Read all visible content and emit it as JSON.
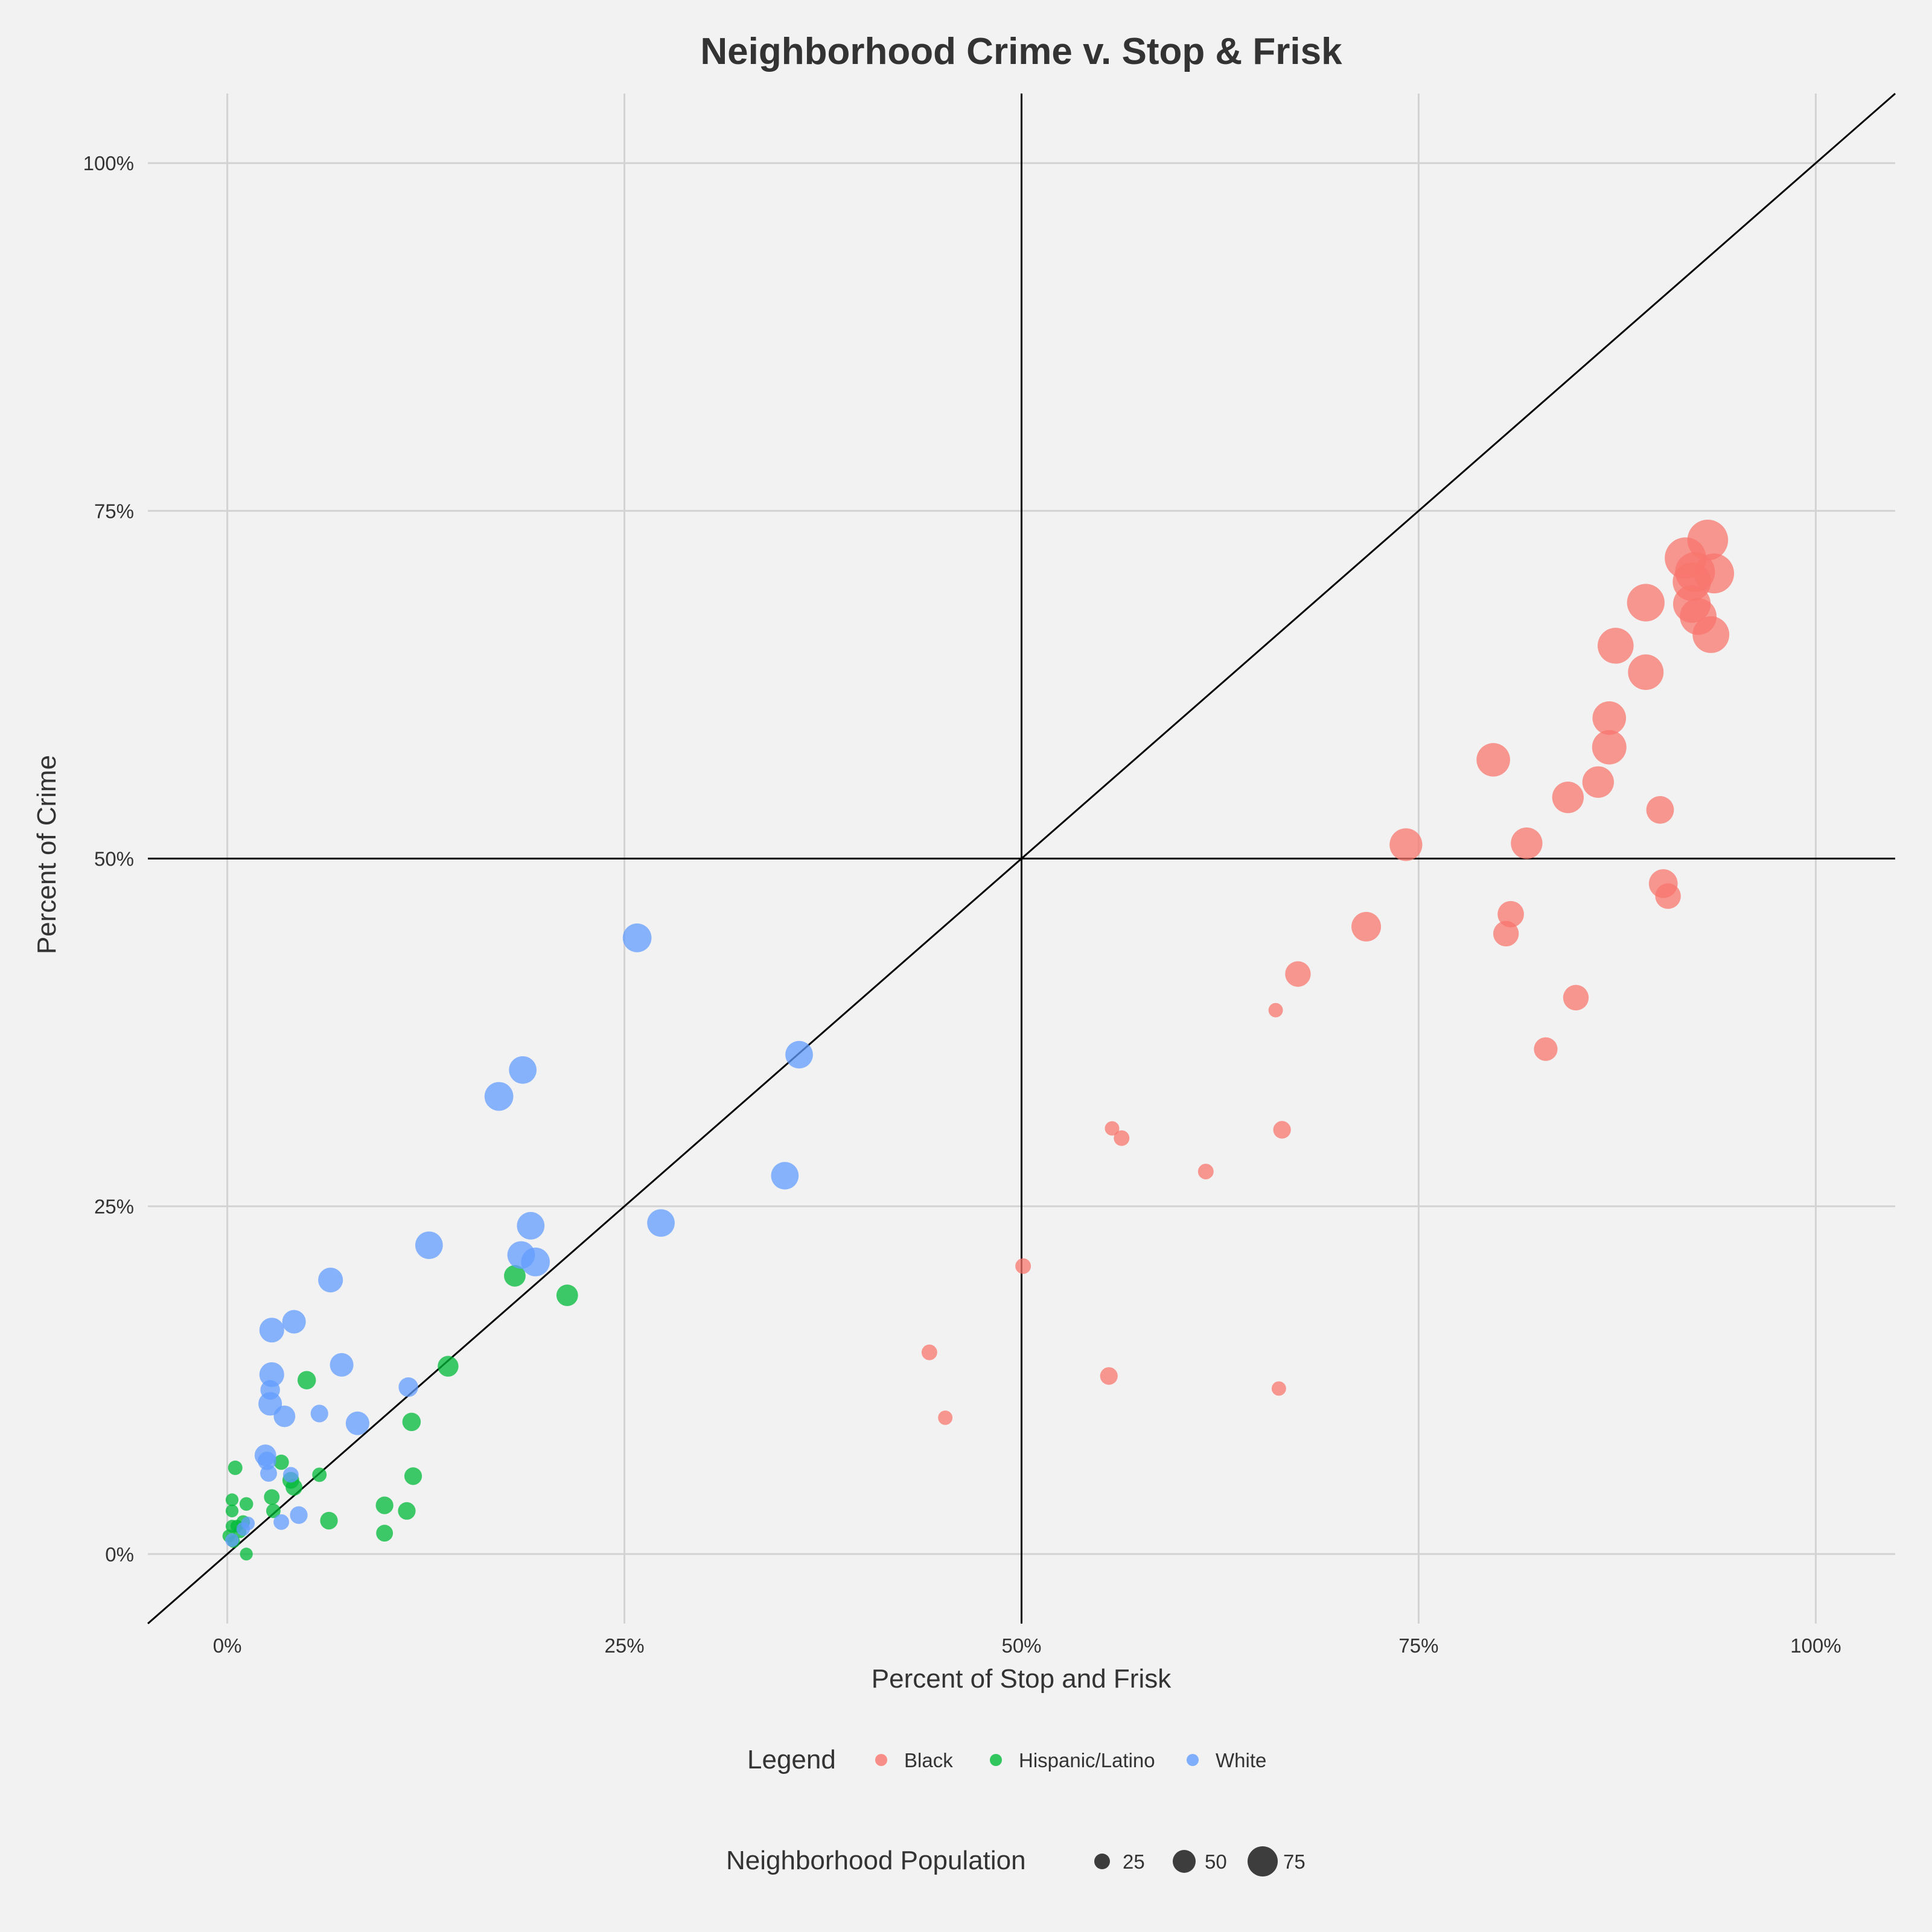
{
  "chart_data": {
    "type": "scatter",
    "title": "Neighborhood Crime v. Stop & Frisk",
    "xlabel": "Percent of Stop and Frisk",
    "ylabel": "Percent of Crime",
    "xlim": [
      -0.05,
      1.05
    ],
    "ylim": [
      -0.05,
      1.05
    ],
    "x_ticks": [
      {
        "value": 0,
        "label": "0%"
      },
      {
        "value": 0.25,
        "label": "25%"
      },
      {
        "value": 0.5,
        "label": "50%"
      },
      {
        "value": 0.75,
        "label": "75%"
      },
      {
        "value": 1.0,
        "label": "100%"
      }
    ],
    "y_ticks": [
      {
        "value": 0,
        "label": "0%"
      },
      {
        "value": 0.25,
        "label": "25%"
      },
      {
        "value": 0.5,
        "label": "50%"
      },
      {
        "value": 0.75,
        "label": "75%"
      },
      {
        "value": 1.0,
        "label": "100%"
      }
    ],
    "grid": true,
    "reference_lines": [
      {
        "type": "vertical",
        "x": 0.5
      },
      {
        "type": "horizontal",
        "y": 0.5
      },
      {
        "type": "diagonal",
        "slope": 1,
        "intercept": 0
      }
    ],
    "legend_title": "Legend",
    "legend_position": "bottom",
    "size_legend": {
      "title": "Neighborhood Population",
      "values": [
        25,
        50,
        75
      ]
    },
    "series": [
      {
        "name": "Black",
        "color": "#f8766d",
        "points": [
          [
            0.932,
            0.729,
            78
          ],
          [
            0.918,
            0.716,
            80
          ],
          [
            0.924,
            0.706,
            76
          ],
          [
            0.936,
            0.705,
            76
          ],
          [
            0.922,
            0.699,
            72
          ],
          [
            0.893,
            0.684,
            70
          ],
          [
            0.922,
            0.683,
            70
          ],
          [
            0.926,
            0.674,
            68
          ],
          [
            0.934,
            0.661,
            68
          ],
          [
            0.874,
            0.653,
            66
          ],
          [
            0.893,
            0.634,
            65
          ],
          [
            0.87,
            0.601,
            60
          ],
          [
            0.87,
            0.58,
            62
          ],
          [
            0.797,
            0.571,
            60
          ],
          [
            0.863,
            0.555,
            55
          ],
          [
            0.844,
            0.544,
            55
          ],
          [
            0.902,
            0.535,
            45
          ],
          [
            0.742,
            0.51,
            58
          ],
          [
            0.818,
            0.511,
            55
          ],
          [
            0.904,
            0.482,
            48
          ],
          [
            0.907,
            0.473,
            40
          ],
          [
            0.808,
            0.46,
            42
          ],
          [
            0.805,
            0.446,
            40
          ],
          [
            0.717,
            0.451,
            50
          ],
          [
            0.674,
            0.417,
            40
          ],
          [
            0.849,
            0.4,
            40
          ],
          [
            0.66,
            0.391,
            12
          ],
          [
            0.83,
            0.363,
            35
          ],
          [
            0.557,
            0.306,
            12
          ],
          [
            0.664,
            0.305,
            20
          ],
          [
            0.563,
            0.299,
            15
          ],
          [
            0.616,
            0.275,
            15
          ],
          [
            0.501,
            0.207,
            15
          ],
          [
            0.442,
            0.145,
            15
          ],
          [
            0.555,
            0.128,
            20
          ],
          [
            0.662,
            0.119,
            12
          ],
          [
            0.452,
            0.098,
            12
          ]
        ]
      },
      {
        "name": "Hispanic/Latino",
        "color": "#00ba38",
        "points": [
          [
            0.181,
            0.2,
            30
          ],
          [
            0.214,
            0.186,
            30
          ],
          [
            0.139,
            0.135,
            28
          ],
          [
            0.05,
            0.125,
            22
          ],
          [
            0.116,
            0.095,
            22
          ],
          [
            0.005,
            0.062,
            12
          ],
          [
            0.034,
            0.066,
            14
          ],
          [
            0.058,
            0.057,
            12
          ],
          [
            0.117,
            0.056,
            20
          ],
          [
            0.04,
            0.053,
            18
          ],
          [
            0.042,
            0.048,
            18
          ],
          [
            0.028,
            0.041,
            15
          ],
          [
            0.003,
            0.039,
            8
          ],
          [
            0.012,
            0.036,
            10
          ],
          [
            0.099,
            0.035,
            20
          ],
          [
            0.113,
            0.031,
            20
          ],
          [
            0.003,
            0.031,
            8
          ],
          [
            0.029,
            0.031,
            12
          ],
          [
            0.064,
            0.024,
            20
          ],
          [
            0.01,
            0.023,
            10
          ],
          [
            0.006,
            0.02,
            8
          ],
          [
            0.003,
            0.02,
            8
          ],
          [
            0.008,
            0.016,
            8
          ],
          [
            0.099,
            0.015,
            18
          ],
          [
            0.001,
            0.013,
            8
          ],
          [
            0.004,
            0.009,
            8
          ],
          [
            0.012,
            0.0,
            8
          ]
        ]
      },
      {
        "name": "White",
        "color": "#619cff",
        "points": [
          [
            0.258,
            0.443,
            48
          ],
          [
            0.36,
            0.359,
            45
          ],
          [
            0.186,
            0.348,
            45
          ],
          [
            0.171,
            0.329,
            48
          ],
          [
            0.351,
            0.272,
            45
          ],
          [
            0.273,
            0.238,
            45
          ],
          [
            0.191,
            0.236,
            45
          ],
          [
            0.127,
            0.222,
            45
          ],
          [
            0.185,
            0.215,
            45
          ],
          [
            0.194,
            0.21,
            48
          ],
          [
            0.065,
            0.197,
            38
          ],
          [
            0.042,
            0.167,
            35
          ],
          [
            0.028,
            0.161,
            38
          ],
          [
            0.072,
            0.136,
            35
          ],
          [
            0.028,
            0.129,
            38
          ],
          [
            0.114,
            0.12,
            25
          ],
          [
            0.027,
            0.118,
            25
          ],
          [
            0.027,
            0.108,
            35
          ],
          [
            0.036,
            0.099,
            30
          ],
          [
            0.058,
            0.101,
            20
          ],
          [
            0.082,
            0.094,
            35
          ],
          [
            0.024,
            0.071,
            30
          ],
          [
            0.025,
            0.067,
            22
          ],
          [
            0.026,
            0.058,
            18
          ],
          [
            0.04,
            0.057,
            15
          ],
          [
            0.045,
            0.028,
            20
          ],
          [
            0.034,
            0.023,
            15
          ],
          [
            0.013,
            0.022,
            10
          ],
          [
            0.01,
            0.018,
            10
          ],
          [
            0.003,
            0.01,
            10
          ]
        ]
      }
    ]
  }
}
